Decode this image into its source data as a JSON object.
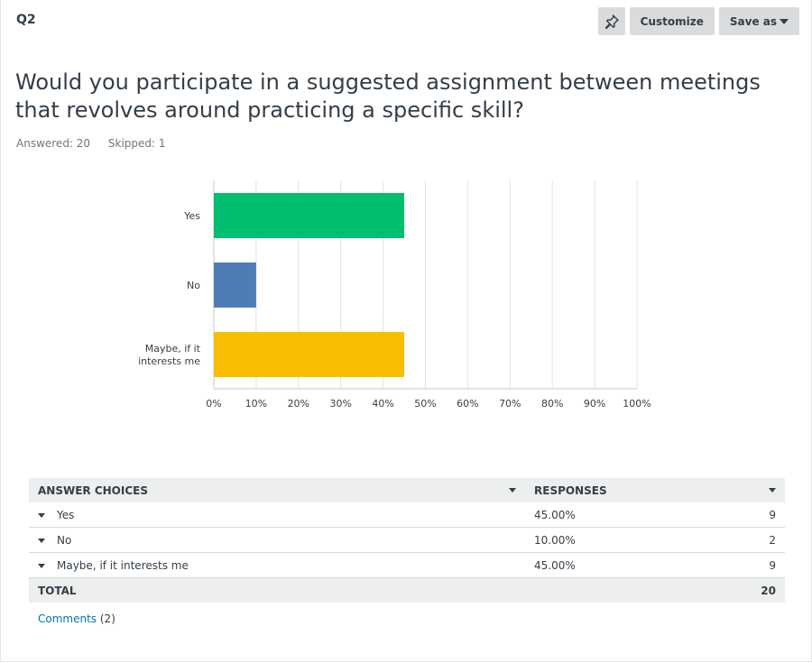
{
  "question": {
    "number": "Q2",
    "title": "Would you participate in a suggested assignment between meetings that revolves around practicing a specific skill?",
    "answered": "Answered: 20",
    "skipped": "Skipped: 1"
  },
  "toolbar": {
    "pin_icon": "pin-icon",
    "customize_label": "Customize",
    "save_as_label": "Save as"
  },
  "chart_data": {
    "type": "bar",
    "orientation": "horizontal",
    "categories": [
      [
        "Yes"
      ],
      [
        "No"
      ],
      [
        "Maybe, if it",
        "interests me"
      ]
    ],
    "values": [
      45,
      10,
      45
    ],
    "colors": [
      "#00bf6f",
      "#507cb6",
      "#f9be00"
    ],
    "xlim": [
      0,
      100
    ],
    "ticks": [
      0,
      10,
      20,
      30,
      40,
      50,
      60,
      70,
      80,
      90,
      100
    ],
    "tick_labels": [
      "0%",
      "10%",
      "20%",
      "30%",
      "40%",
      "50%",
      "60%",
      "70%",
      "80%",
      "90%",
      "100%"
    ],
    "grid": true
  },
  "table": {
    "headers": {
      "choices": "ANSWER CHOICES",
      "responses": "RESPONSES"
    },
    "rows": [
      {
        "choice": "Yes",
        "percent": "45.00%",
        "count": "9"
      },
      {
        "choice": "No",
        "percent": "10.00%",
        "count": "2"
      },
      {
        "choice": "Maybe, if it interests me",
        "percent": "45.00%",
        "count": "9"
      }
    ],
    "total_label": "TOTAL",
    "total_value": "20"
  },
  "comments": {
    "link": "Comments",
    "count": "(2)"
  }
}
